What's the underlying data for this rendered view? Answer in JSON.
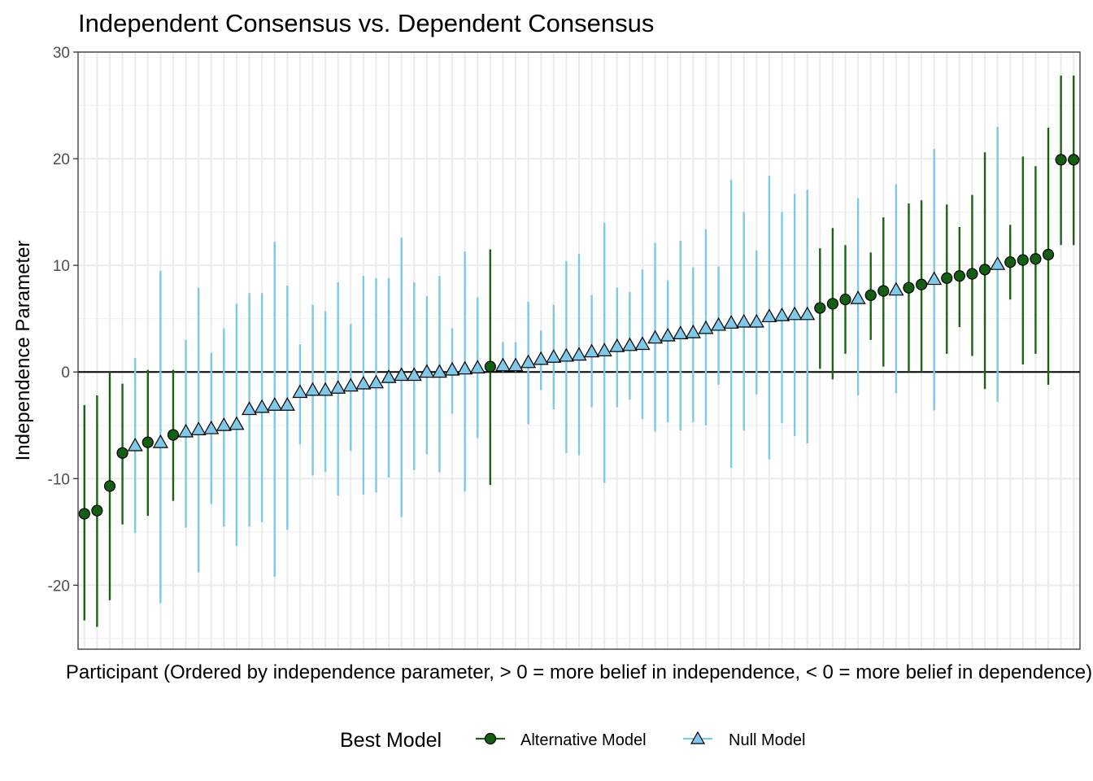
{
  "chart_data": {
    "type": "scatter",
    "title": "Independent Consensus vs. Dependent Consensus",
    "xlabel": "Participant (Ordered by independence parameter, > 0 = more belief in independence, < 0 = more belief in dependence)",
    "ylabel": "Independence Parameter",
    "ylim": [
      -26,
      30
    ],
    "y_ticks": [
      30,
      20,
      10,
      0,
      -10,
      -20
    ],
    "y_tick_labels": [
      "30",
      "20",
      "10",
      "0",
      "-10",
      "-20"
    ],
    "reference_line_y": 0,
    "grid": true,
    "legend": {
      "title": "Best Model",
      "placement": "bottom",
      "entries": [
        {
          "label": "Alternative Model",
          "shape": "circle",
          "color": "#1a6414",
          "fill": "#135e13"
        },
        {
          "label": "Null Model",
          "shape": "triangle",
          "color": "#7ec8e8",
          "fill": "#7ec8e8"
        }
      ]
    },
    "x": [
      1,
      2,
      3,
      4,
      5,
      6,
      7,
      8,
      9,
      10,
      11,
      12,
      13,
      14,
      15,
      16,
      17,
      18,
      19,
      20,
      21,
      22,
      23,
      24,
      25,
      26,
      27,
      28,
      29,
      30,
      31,
      32,
      33,
      34,
      35,
      36,
      37,
      38,
      39,
      40,
      41,
      42,
      43,
      44,
      45,
      46,
      47,
      48,
      49,
      50,
      51,
      52,
      53,
      54,
      55,
      56,
      57,
      58,
      59,
      60,
      61,
      62,
      63,
      64,
      65,
      66,
      67,
      68,
      69,
      70,
      71,
      72,
      73,
      74,
      75,
      76,
      77,
      78,
      79
    ],
    "y": [
      -13.3,
      -13.0,
      -10.7,
      -7.6,
      -6.9,
      -6.6,
      -6.6,
      -5.9,
      -5.6,
      -5.4,
      -5.3,
      -5.0,
      -4.9,
      -3.5,
      -3.3,
      -3.1,
      -3.1,
      -1.9,
      -1.7,
      -1.7,
      -1.5,
      -1.3,
      -1.1,
      -1.0,
      -0.5,
      -0.3,
      -0.3,
      0.0,
      0.0,
      0.2,
      0.3,
      0.4,
      0.5,
      0.6,
      0.6,
      0.9,
      1.2,
      1.4,
      1.5,
      1.6,
      1.9,
      2.0,
      2.4,
      2.5,
      2.6,
      3.2,
      3.4,
      3.6,
      3.7,
      4.1,
      4.4,
      4.6,
      4.7,
      4.7,
      5.2,
      5.3,
      5.4,
      5.4,
      6.0,
      6.4,
      6.8,
      6.9,
      7.2,
      7.6,
      7.7,
      7.9,
      8.2,
      8.7,
      8.8,
      9.0,
      9.2,
      9.6,
      10.1,
      10.3,
      10.5,
      10.6,
      11.0,
      19.9,
      19.9
    ],
    "y_low": [
      -23.3,
      -23.9,
      -21.4,
      -14.3,
      -15.1,
      -13.5,
      -21.7,
      -12.1,
      -14.6,
      -18.8,
      -12.4,
      -14.5,
      -16.3,
      -14.5,
      -14.1,
      -19.2,
      -14.8,
      -6.8,
      -9.7,
      -9.4,
      -11.6,
      -7.4,
      -11.5,
      -11.3,
      -9.9,
      -13.6,
      -9.2,
      -7.7,
      -9.4,
      -3.9,
      -11.2,
      -6.2,
      -10.6,
      0.0,
      0.0,
      -4.9,
      -1.7,
      -3.5,
      -7.6,
      -7.8,
      -3.3,
      -10.4,
      -3.3,
      -2.6,
      -4.4,
      -5.6,
      -4.7,
      -5.5,
      -4.7,
      -5.0,
      -1.2,
      -9.0,
      -5.5,
      -2.1,
      -8.2,
      -4.8,
      -6.0,
      -6.7,
      0.3,
      -0.7,
      1.7,
      -2.2,
      3.0,
      0.5,
      -2.0,
      0.0,
      0.0,
      -3.6,
      1.7,
      4.2,
      1.5,
      -1.6,
      -2.8,
      6.8,
      0.7,
      1.7,
      -1.2,
      11.9,
      11.9
    ],
    "y_high": [
      -3.1,
      -2.2,
      0.0,
      -1.1,
      1.3,
      0.2,
      9.5,
      0.2,
      3.0,
      7.9,
      1.8,
      4.1,
      6.4,
      7.4,
      7.4,
      12.2,
      8.1,
      2.6,
      6.3,
      5.7,
      8.4,
      4.5,
      9.0,
      8.8,
      8.8,
      12.6,
      8.4,
      7.1,
      9.0,
      4.1,
      11.3,
      7.0,
      11.5,
      2.8,
      2.8,
      6.6,
      3.9,
      6.3,
      10.4,
      11.1,
      7.2,
      14.0,
      7.9,
      7.5,
      9.6,
      12.1,
      8.6,
      12.3,
      9.8,
      13.4,
      9.9,
      18.0,
      15.0,
      11.4,
      18.4,
      15.0,
      16.7,
      17.1,
      11.6,
      13.5,
      11.9,
      16.3,
      11.2,
      14.5,
      17.6,
      15.8,
      16.1,
      20.9,
      15.7,
      13.6,
      16.6,
      20.6,
      23.0,
      13.8,
      20.2,
      19.3,
      22.9,
      27.8,
      27.8
    ],
    "model": [
      "A",
      "A",
      "A",
      "A",
      "N",
      "A",
      "N",
      "A",
      "N",
      "N",
      "N",
      "N",
      "N",
      "N",
      "N",
      "N",
      "N",
      "N",
      "N",
      "N",
      "N",
      "N",
      "N",
      "N",
      "N",
      "N",
      "N",
      "N",
      "N",
      "N",
      "N",
      "N",
      "A",
      "N",
      "N",
      "N",
      "N",
      "N",
      "N",
      "N",
      "N",
      "N",
      "N",
      "N",
      "N",
      "N",
      "N",
      "N",
      "N",
      "N",
      "N",
      "N",
      "N",
      "N",
      "N",
      "N",
      "N",
      "N",
      "A",
      "A",
      "A",
      "N",
      "A",
      "A",
      "N",
      "A",
      "A",
      "N",
      "A",
      "A",
      "A",
      "A",
      "N",
      "A",
      "A",
      "A",
      "A",
      "A",
      "A"
    ]
  }
}
